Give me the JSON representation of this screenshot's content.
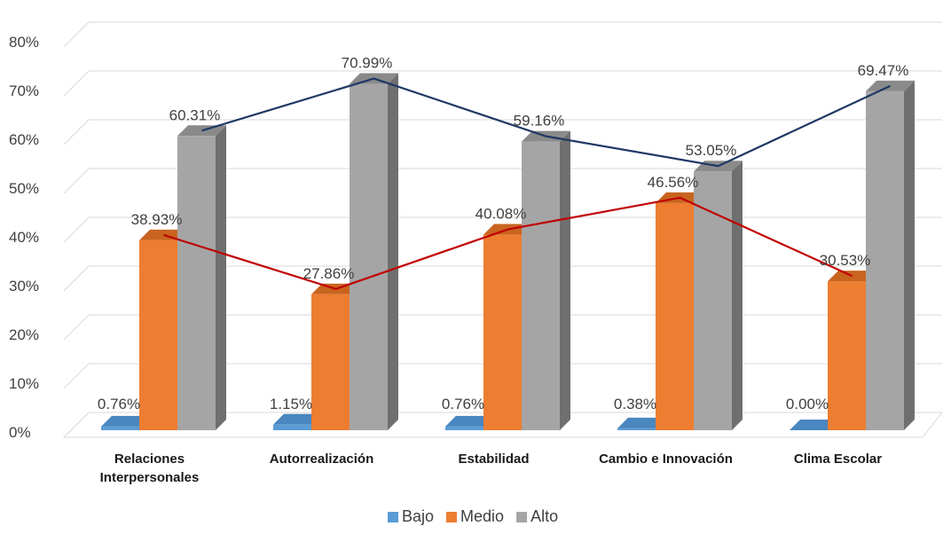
{
  "chart_data": {
    "type": "bar",
    "categories": [
      [
        "Relaciones",
        "Interpersonales"
      ],
      [
        "Autorrealización"
      ],
      [
        "Estabilidad"
      ],
      [
        "Cambio e Innovación"
      ],
      [
        "Clima Escolar"
      ]
    ],
    "series": [
      {
        "name": "Bajo",
        "values": [
          0.76,
          1.15,
          0.76,
          0.38,
          0.0
        ],
        "labels": [
          "0.76%",
          "1.15%",
          "0.76%",
          "0.38%",
          "0.00%"
        ]
      },
      {
        "name": "Medio",
        "values": [
          38.93,
          27.86,
          40.08,
          46.56,
          30.53
        ],
        "labels": [
          "38.93%",
          "27.86%",
          "40.08%",
          "46.56%",
          "30.53%"
        ]
      },
      {
        "name": "Alto",
        "values": [
          60.31,
          70.99,
          59.16,
          53.05,
          69.47
        ],
        "labels": [
          "60.31%",
          "70.99%",
          "59.16%",
          "53.05%",
          "69.47%"
        ]
      }
    ],
    "trend_lines": [
      "Medio",
      "Alto"
    ],
    "ylim": [
      0,
      80
    ],
    "yticks": [
      "0%",
      "10%",
      "20%",
      "30%",
      "40%",
      "50%",
      "60%",
      "70%",
      "80%"
    ],
    "grid": true,
    "legend_position": "bottom",
    "colors": {
      "Bajo": {
        "front": "#5b9bd5",
        "side": "#3f6f9c",
        "top": "#4a86bf"
      },
      "Medio": {
        "front": "#ed7d31",
        "side": "#b55c1f",
        "top": "#c8641f"
      },
      "Alto": {
        "front": "#a5a5a5",
        "side": "#6f6f6f",
        "top": "#8a8a8a"
      },
      "trend_medio": "#c00000",
      "trend_alto": "#1f3864",
      "grid": "#d9d9d9",
      "floor": "#bfbfbf",
      "text": "#404040",
      "category_text": "#1a1a1a"
    }
  }
}
